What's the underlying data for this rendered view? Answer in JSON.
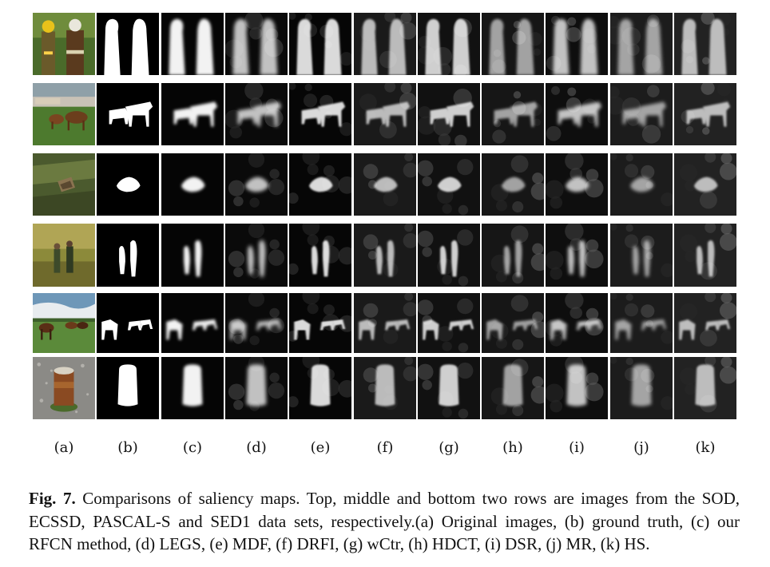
{
  "figure": {
    "columns": [
      {
        "id": "a",
        "label": "(a)",
        "method": "Original images"
      },
      {
        "id": "b",
        "label": "(b)",
        "method": "ground truth"
      },
      {
        "id": "c",
        "label": "(c)",
        "method": "our RFCN method"
      },
      {
        "id": "d",
        "label": "(d)",
        "method": "LEGS"
      },
      {
        "id": "e",
        "label": "(e)",
        "method": "MDF"
      },
      {
        "id": "f",
        "label": "(f)",
        "method": "DRFI"
      },
      {
        "id": "g",
        "label": "(g)",
        "method": "wCtr"
      },
      {
        "id": "h",
        "label": "(h)",
        "method": "HDCT"
      },
      {
        "id": "i",
        "label": "(i)",
        "method": "DSR"
      },
      {
        "id": "j",
        "label": "(j)",
        "method": "MR"
      },
      {
        "id": "k",
        "label": "(k)",
        "method": "HS"
      }
    ],
    "rows": [
      {
        "id": "firefighters",
        "scene": "two firefighters"
      },
      {
        "id": "horses-field",
        "scene": "horses in a field"
      },
      {
        "id": "bird-grass",
        "scene": "small object in grass"
      },
      {
        "id": "two-people",
        "scene": "two people walking"
      },
      {
        "id": "horses-sky",
        "scene": "horses under sky"
      },
      {
        "id": "can-gravel",
        "scene": "rusty can on gravel"
      }
    ]
  },
  "caption": {
    "figure_label": "Fig. 7.",
    "text": "Comparisons of saliency maps. Top, middle and bottom two rows are images from the SOD, ECSSD, PASCAL-S and SED1 data sets, respectively.(a) Original images, (b) ground truth, (c) our RFCN method, (d) LEGS, (e) MDF, (f) DRFI, (g) wCtr, (h) HDCT, (i) DSR, (j) MR, (k) HS."
  }
}
